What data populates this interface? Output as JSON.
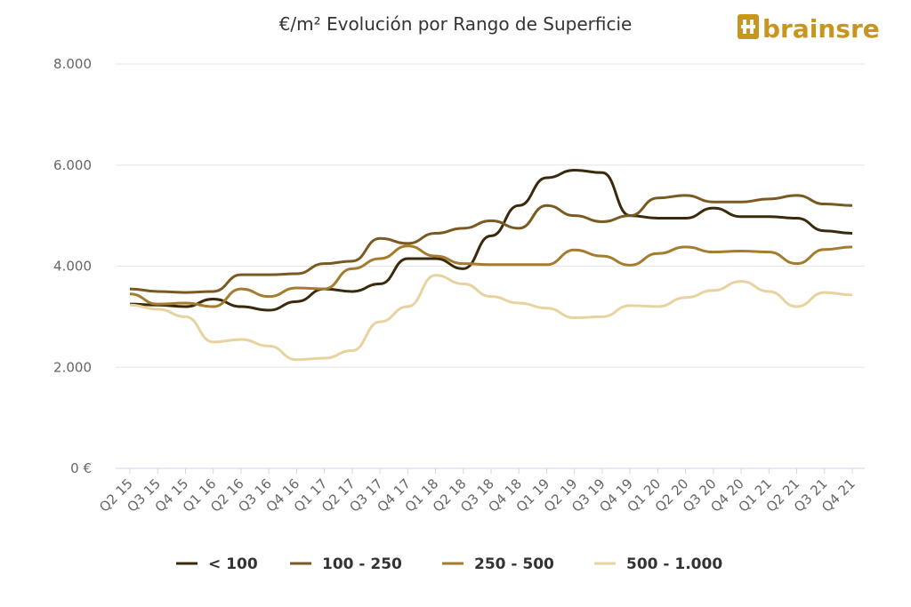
{
  "chart_data": {
    "type": "line",
    "title": "€/m² Evolución por Rango de Superficie",
    "logo": "brainsre",
    "categories": [
      "Q2 15",
      "Q3 15",
      "Q4 15",
      "Q1 16",
      "Q2 16",
      "Q3 16",
      "Q4 16",
      "Q1 17",
      "Q2 17",
      "Q3 17",
      "Q4 17",
      "Q1 18",
      "Q2 18",
      "Q3 18",
      "Q4 18",
      "Q1 19",
      "Q2 19",
      "Q3 19",
      "Q4 19",
      "Q1 20",
      "Q2 20",
      "Q3 20",
      "Q4 20",
      "Q1 21",
      "Q2 21",
      "Q3 21",
      "Q4 21"
    ],
    "series": [
      {
        "name": "< 100",
        "color": "#3a2a0c",
        "values": [
          3250,
          3230,
          3200,
          3350,
          3200,
          3130,
          3300,
          3550,
          3500,
          3650,
          4150,
          4150,
          3950,
          4600,
          5200,
          5750,
          5900,
          5850,
          5000,
          4950,
          4950,
          5150,
          4980,
          4980,
          4950,
          4700,
          4650
        ]
      },
      {
        "name": "100 - 250",
        "color": "#7a5a22",
        "values": [
          3550,
          3500,
          3480,
          3500,
          3830,
          3830,
          3850,
          4050,
          4100,
          4550,
          4450,
          4650,
          4750,
          4900,
          4750,
          5200,
          5000,
          4880,
          5000,
          5350,
          5400,
          5270,
          5270,
          5330,
          5400,
          5230,
          5200
        ]
      },
      {
        "name": "250 - 500",
        "color": "#a57c2e",
        "values": [
          3450,
          3250,
          3270,
          3200,
          3550,
          3400,
          3570,
          3550,
          3950,
          4150,
          4400,
          4200,
          4050,
          4030,
          4030,
          4030,
          4320,
          4200,
          4020,
          4250,
          4380,
          4280,
          4300,
          4280,
          4050,
          4330,
          4380
        ]
      },
      {
        "name": "500 - 1.000",
        "color": "#e8d3a0",
        "values": [
          3230,
          3150,
          3000,
          2500,
          2550,
          2420,
          2150,
          2180,
          2330,
          2900,
          3200,
          3820,
          3650,
          3400,
          3270,
          3170,
          2980,
          3000,
          3220,
          3200,
          3380,
          3520,
          3700,
          3500,
          3200,
          3480,
          3430
        ]
      }
    ],
    "ylim": [
      0,
      8000
    ],
    "yticks": [
      {
        "value": 0,
        "label": "0 €"
      },
      {
        "value": 2000,
        "label": "2.000"
      },
      {
        "value": 4000,
        "label": "4.000"
      },
      {
        "value": 6000,
        "label": "6.000"
      },
      {
        "value": 8000,
        "label": "8.000"
      }
    ],
    "grid": true
  }
}
